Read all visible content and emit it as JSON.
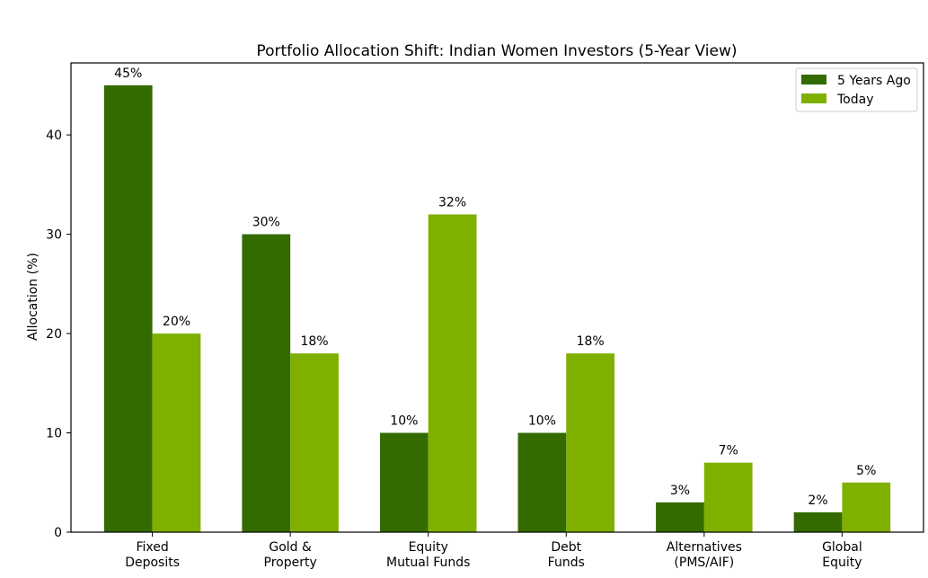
{
  "chart_data": {
    "type": "bar",
    "title": "Portfolio Allocation Shift: Indian Women Investors (5-Year View)",
    "xlabel": "",
    "ylabel": "Allocation (%)",
    "ylim": [
      0,
      47.25
    ],
    "yticks": [
      0,
      10,
      20,
      30,
      40
    ],
    "categories": [
      [
        "Fixed",
        "Deposits"
      ],
      [
        "Gold &",
        "Property"
      ],
      [
        "Equity",
        "Mutual Funds"
      ],
      [
        "Debt",
        "Funds"
      ],
      [
        "Alternatives",
        "(PMS/AIF)"
      ],
      [
        "Global",
        "Equity"
      ]
    ],
    "series": [
      {
        "name": "5 Years Ago",
        "color": "#336b00",
        "values": [
          45,
          30,
          10,
          10,
          3,
          2
        ],
        "labels": [
          "45%",
          "30%",
          "10%",
          "10%",
          "3%",
          "2%"
        ]
      },
      {
        "name": "Today",
        "color": "#7fb000",
        "values": [
          20,
          18,
          32,
          18,
          7,
          5
        ],
        "labels": [
          "20%",
          "18%",
          "32%",
          "18%",
          "7%",
          "5%"
        ]
      }
    ],
    "legend": {
      "position": "top-right"
    },
    "grid": false
  }
}
